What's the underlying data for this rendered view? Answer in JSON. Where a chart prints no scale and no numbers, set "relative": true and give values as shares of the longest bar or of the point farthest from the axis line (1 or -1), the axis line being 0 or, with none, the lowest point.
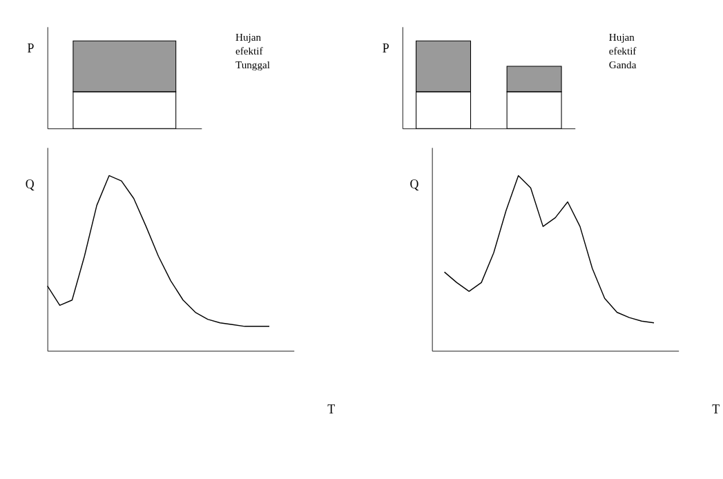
{
  "chart_data": [
    {
      "type": "bar",
      "stacked": true,
      "relative": true,
      "ylabel": "P",
      "categories": [
        null
      ],
      "series": [
        {
          "color": "#ffffff",
          "values": [
            0.42
          ]
        },
        {
          "color": "#9a9a9a",
          "values": [
            0.58
          ]
        }
      ],
      "annotations": [
        "Hujan efektif Tunggal"
      ]
    },
    {
      "type": "bar",
      "stacked": true,
      "relative": true,
      "ylabel": "P",
      "categories": [
        null,
        null
      ],
      "series": [
        {
          "color": "#ffffff",
          "values": [
            0.42,
            0.42
          ]
        },
        {
          "color": "#9a9a9a",
          "values": [
            0.58,
            0.29
          ]
        }
      ],
      "annotations": [
        "Hujan efektif Ganda"
      ]
    },
    {
      "type": "line",
      "relative": true,
      "ylabel": "Q",
      "xlabel": "T",
      "marker": "none",
      "line_style": "solid",
      "categories": [
        null,
        null,
        null,
        null,
        null,
        null,
        null,
        null,
        null,
        null,
        null,
        null,
        null,
        null,
        null,
        null,
        null,
        null,
        null,
        null,
        null
      ],
      "series": [
        {
          "color": "#000000",
          "values": [
            0.37,
            0.26,
            0.29,
            0.54,
            0.83,
            1.0,
            0.97,
            0.87,
            0.71,
            0.54,
            0.4,
            0.29,
            0.22,
            0.18,
            0.16,
            0.15,
            0.14,
            0.14,
            0.14,
            null,
            null
          ]
        }
      ]
    },
    {
      "type": "line",
      "relative": true,
      "ylabel": "Q",
      "xlabel": "T",
      "marker": "none",
      "line_style": "solid",
      "categories": [
        null,
        null,
        null,
        null,
        null,
        null,
        null,
        null,
        null,
        null,
        null,
        null,
        null,
        null,
        null,
        null,
        null,
        null,
        null,
        null,
        null
      ],
      "series": [
        {
          "color": "#000000",
          "values": [
            null,
            0.45,
            0.39,
            0.34,
            0.39,
            0.56,
            0.8,
            1.0,
            0.93,
            0.71,
            0.76,
            0.85,
            0.71,
            0.47,
            0.3,
            0.22,
            0.19,
            0.17,
            0.16,
            null,
            null
          ]
        }
      ]
    }
  ]
}
